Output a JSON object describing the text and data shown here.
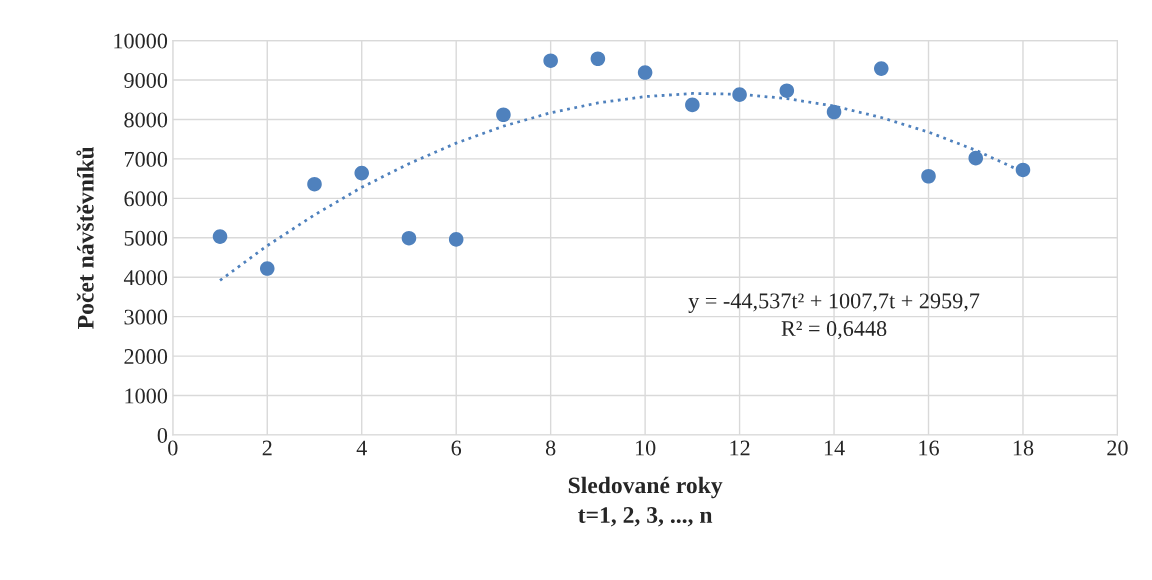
{
  "chart_data": {
    "type": "scatter",
    "xlabel": "Sledované roky\nt=1, 2, 3, ..., n",
    "ylabel": "Počet návštěvníků",
    "xlim": [
      0,
      20
    ],
    "xticks": [
      0,
      2,
      4,
      6,
      8,
      10,
      12,
      14,
      16,
      18,
      20
    ],
    "ylim": [
      0,
      10000
    ],
    "yticks": [
      0,
      1000,
      2000,
      3000,
      4000,
      5000,
      6000,
      7000,
      8000,
      9000,
      10000
    ],
    "grid": true,
    "marker": "circle",
    "series": [
      {
        "color": "#4f81bd",
        "x": [
          1,
          2,
          3,
          4,
          5,
          6,
          7,
          8,
          9,
          10,
          11,
          12,
          13,
          14,
          15,
          16,
          17,
          18
        ],
        "values": [
          5030,
          4220,
          6360,
          6640,
          4990,
          4960,
          8120,
          9490,
          9540,
          9190,
          8370,
          8630,
          8730,
          8190,
          9290,
          6560,
          7020,
          6720
        ]
      },
      {
        "type": "line",
        "color": "#4f81bd",
        "line_style": "dotted",
        "marker": "none",
        "x": [
          1,
          2,
          3,
          4,
          5,
          6,
          7,
          8,
          9,
          10,
          11,
          12,
          13,
          14,
          15,
          16,
          17,
          18
        ],
        "values": [
          3920,
          4800,
          5580,
          6280,
          6880,
          7400,
          7830,
          8170,
          8420,
          8580,
          8660,
          8640,
          8530,
          8340,
          8050,
          7680,
          7220,
          6670
        ]
      }
    ],
    "annotations": [
      "y = -44,537t² + 1007,7t + 2959,7",
      "R² = 0,6448"
    ]
  }
}
